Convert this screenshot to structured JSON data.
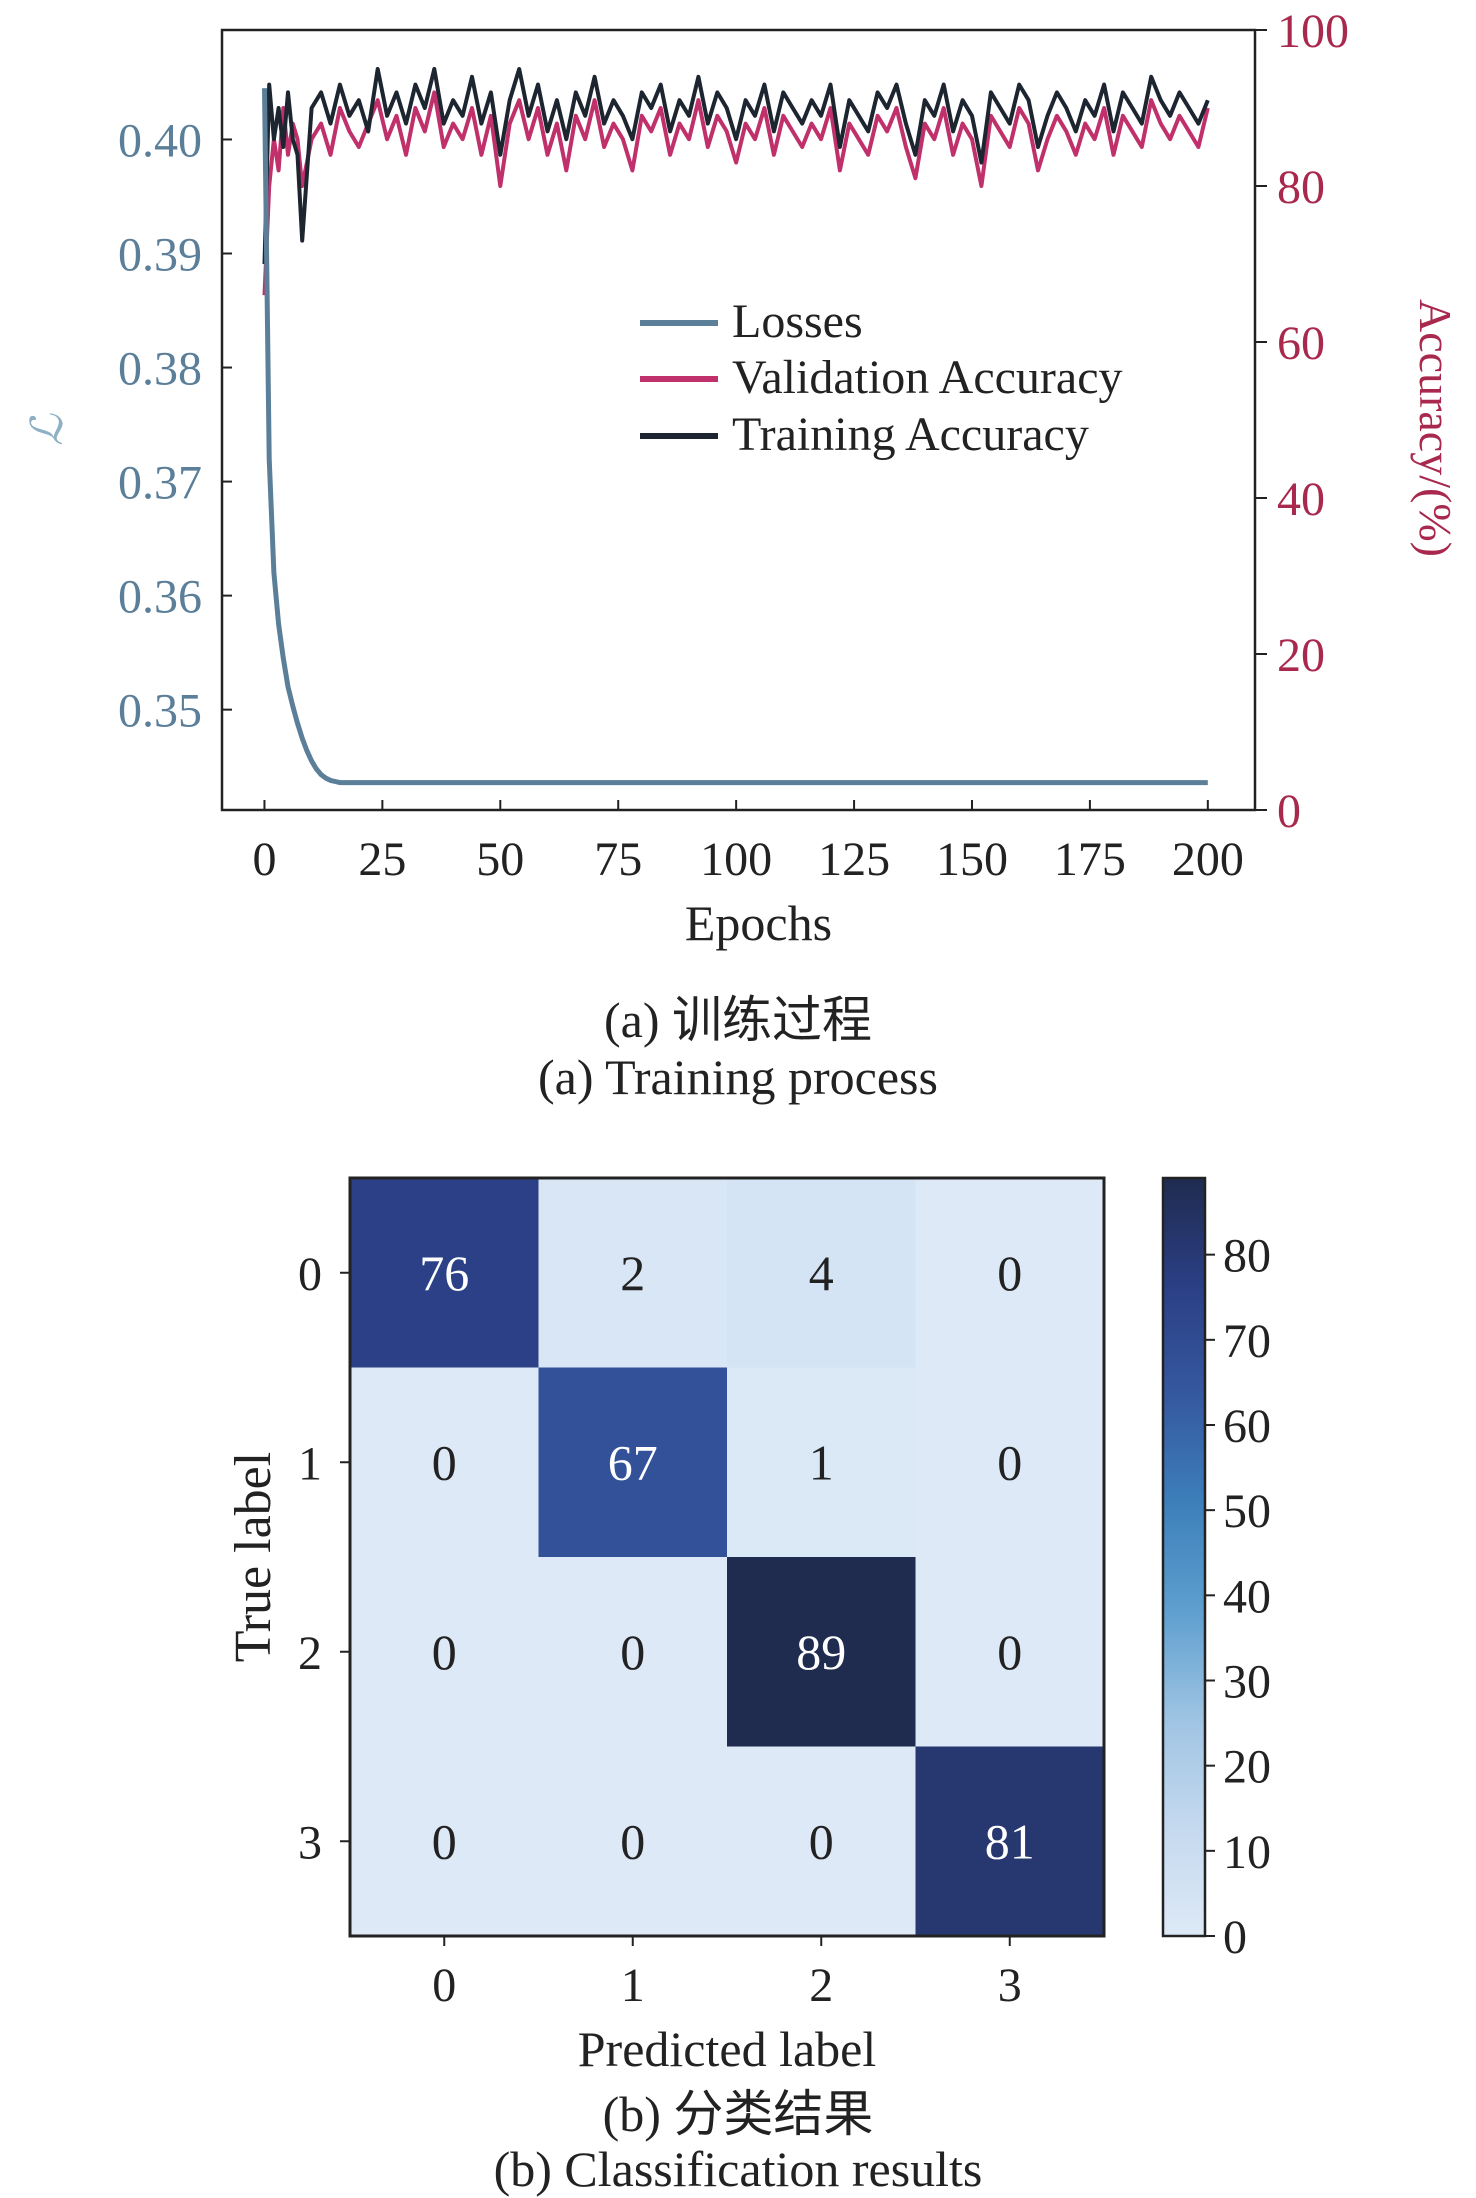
{
  "chart_data": [
    {
      "type": "line",
      "xlabel": "Epochs",
      "ylabel_left": "ℒ",
      "ylabel_right": "Accuracy/(%)",
      "xlim": [
        -9,
        210
      ],
      "ylim_left": [
        0.3412,
        0.4096
      ],
      "ylim_right": [
        0,
        100
      ],
      "xticks": [
        0,
        25,
        50,
        75,
        100,
        125,
        150,
        175,
        200
      ],
      "yticks_left": [
        0.35,
        0.36,
        0.37,
        0.38,
        0.39,
        0.4
      ],
      "yticks_left_labels": [
        "0.35",
        "0.36",
        "0.37",
        "0.38",
        "0.39",
        "0.40"
      ],
      "yticks_right": [
        0,
        20,
        40,
        60,
        80,
        100
      ],
      "legend": [
        "Losses",
        "Validation Accuracy",
        "Training Accuracy"
      ],
      "legend_position": "center-right",
      "caption_cn": "(a) 训练过程",
      "caption_en": "(a) Training process",
      "series": [
        {
          "name": "Losses",
          "color": "#5b7f99",
          "axis": "left",
          "x": [
            0,
            1,
            2,
            3,
            4,
            5,
            6,
            7,
            8,
            9,
            10,
            11,
            12,
            13,
            14,
            15,
            16,
            18,
            20,
            25,
            50,
            75,
            100,
            125,
            150,
            175,
            200
          ],
          "y": [
            0.4045,
            0.372,
            0.362,
            0.3575,
            0.3545,
            0.352,
            0.3503,
            0.3488,
            0.3475,
            0.3464,
            0.3455,
            0.3448,
            0.3443,
            0.344,
            0.3438,
            0.3437,
            0.3436,
            0.3436,
            0.3436,
            0.3436,
            0.3436,
            0.3436,
            0.3436,
            0.3436,
            0.3436,
            0.3436,
            0.3436
          ]
        },
        {
          "name": "Validation Accuracy",
          "color": "#c0306a",
          "axis": "right",
          "x": [
            0,
            1,
            2,
            3,
            4,
            5,
            6,
            7,
            8,
            10,
            12,
            14,
            16,
            18,
            20,
            22,
            24,
            26,
            28,
            30,
            32,
            34,
            36,
            38,
            40,
            42,
            44,
            46,
            48,
            50,
            52,
            54,
            56,
            58,
            60,
            62,
            64,
            66,
            68,
            70,
            72,
            74,
            76,
            78,
            80,
            82,
            84,
            86,
            88,
            90,
            92,
            94,
            96,
            98,
            100,
            102,
            104,
            106,
            108,
            110,
            112,
            114,
            116,
            118,
            120,
            122,
            124,
            126,
            128,
            130,
            132,
            134,
            136,
            138,
            140,
            142,
            144,
            146,
            148,
            150,
            152,
            154,
            156,
            158,
            160,
            162,
            164,
            166,
            168,
            170,
            172,
            174,
            176,
            178,
            180,
            182,
            184,
            186,
            188,
            190,
            192,
            194,
            196,
            198,
            200
          ],
          "y": [
            66,
            80,
            86,
            82,
            90,
            84,
            88,
            86,
            80,
            86,
            88,
            84,
            90,
            87,
            85,
            88,
            91,
            86,
            89,
            84,
            90,
            87,
            92,
            85,
            88,
            86,
            90,
            84,
            89,
            80,
            88,
            91,
            86,
            90,
            84,
            88,
            82,
            89,
            86,
            91,
            85,
            88,
            86,
            82,
            89,
            87,
            90,
            84,
            88,
            86,
            91,
            85,
            89,
            87,
            83,
            88,
            86,
            90,
            84,
            89,
            87,
            85,
            88,
            86,
            90,
            82,
            88,
            86,
            84,
            89,
            87,
            90,
            85,
            81,
            88,
            86,
            90,
            84,
            88,
            86,
            80,
            89,
            87,
            85,
            90,
            88,
            82,
            86,
            89,
            87,
            84,
            88,
            86,
            90,
            84,
            89,
            87,
            85,
            91,
            88,
            86,
            89,
            87,
            85,
            90
          ]
        },
        {
          "name": "Training Accuracy",
          "color": "#1c2530",
          "axis": "right",
          "x": [
            0,
            1,
            2,
            3,
            4,
            5,
            6,
            7,
            8,
            10,
            12,
            14,
            16,
            18,
            20,
            22,
            24,
            26,
            28,
            30,
            32,
            34,
            36,
            38,
            40,
            42,
            44,
            46,
            48,
            50,
            52,
            54,
            56,
            58,
            60,
            62,
            64,
            66,
            68,
            70,
            72,
            74,
            76,
            78,
            80,
            82,
            84,
            86,
            88,
            90,
            92,
            94,
            96,
            98,
            100,
            102,
            104,
            106,
            108,
            110,
            112,
            114,
            116,
            118,
            120,
            122,
            124,
            126,
            128,
            130,
            132,
            134,
            136,
            138,
            140,
            142,
            144,
            146,
            148,
            150,
            152,
            154,
            156,
            158,
            160,
            162,
            164,
            166,
            168,
            170,
            172,
            174,
            176,
            178,
            180,
            182,
            184,
            186,
            188,
            190,
            192,
            194,
            196,
            198,
            200
          ],
          "y": [
            70,
            93,
            86,
            90,
            85,
            92,
            86,
            84,
            73,
            90,
            92,
            88,
            93,
            89,
            91,
            87,
            95,
            89,
            92,
            88,
            93,
            90,
            95,
            88,
            91,
            89,
            94,
            88,
            92,
            84,
            91,
            95,
            89,
            93,
            87,
            91,
            86,
            92,
            89,
            94,
            88,
            91,
            89,
            86,
            92,
            90,
            93,
            87,
            91,
            89,
            94,
            88,
            92,
            90,
            86,
            91,
            89,
            93,
            87,
            92,
            90,
            88,
            91,
            89,
            93,
            85,
            91,
            89,
            87,
            92,
            90,
            93,
            88,
            84,
            91,
            89,
            93,
            87,
            91,
            89,
            83,
            92,
            90,
            88,
            93,
            91,
            85,
            89,
            92,
            90,
            87,
            91,
            89,
            93,
            87,
            92,
            90,
            88,
            94,
            91,
            89,
            92,
            90,
            88,
            91
          ]
        }
      ]
    },
    {
      "type": "heatmap",
      "xlabel": "Predicted label",
      "ylabel": "True label",
      "row_labels": [
        "0",
        "1",
        "2",
        "3"
      ],
      "col_labels": [
        "0",
        "1",
        "2",
        "3"
      ],
      "matrix": [
        [
          76,
          2,
          4,
          0
        ],
        [
          0,
          67,
          1,
          0
        ],
        [
          0,
          0,
          89,
          0
        ],
        [
          0,
          0,
          0,
          81
        ]
      ],
      "colorbar_ticks": [
        0,
        10,
        20,
        30,
        40,
        50,
        60,
        70,
        80
      ],
      "colorbar_range": [
        0,
        89
      ],
      "colormap": [
        "#dde9f6",
        "#c5d9ef",
        "#9fc4e3",
        "#5e9fcf",
        "#3d7fba",
        "#35589f",
        "#2b3f85",
        "#1f2b4f"
      ],
      "caption_cn": "(b) 分类结果",
      "caption_en": "(b) Classification results"
    }
  ]
}
